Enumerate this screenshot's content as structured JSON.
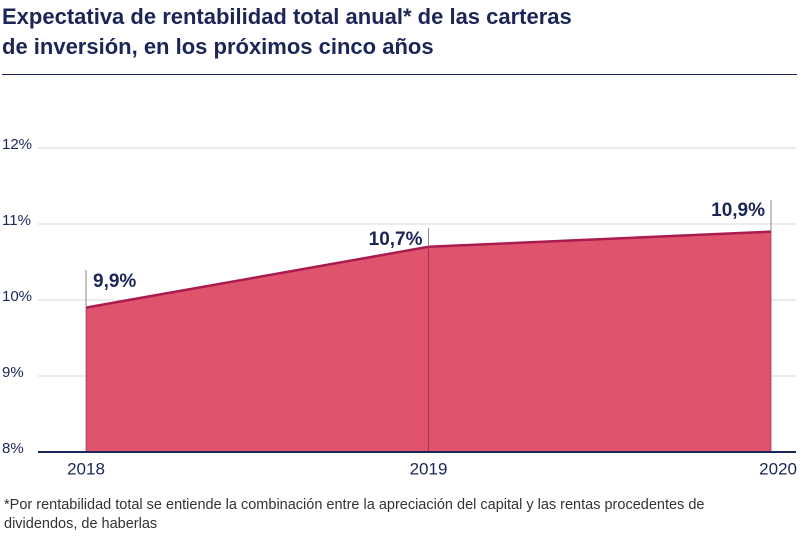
{
  "chart_data": {
    "type": "area",
    "title": "Expectativa de rentabilidad total anual* de las carteras de inversión, en los próximos cinco años",
    "categories": [
      "2018",
      "2019",
      "2020"
    ],
    "values": [
      9.9,
      10.7,
      10.9
    ],
    "value_labels": [
      "9,9%",
      "10,7%",
      "10,9%"
    ],
    "color": "#e0536c",
    "line_color": "#a81c4e",
    "ylim": [
      8,
      12
    ],
    "yticks": [
      {
        "value": 8,
        "label": "8%"
      },
      {
        "value": 9,
        "label": "9%"
      },
      {
        "value": 10,
        "label": "10%"
      },
      {
        "value": 11,
        "label": "11%"
      },
      {
        "value": 12,
        "label": "12%"
      }
    ],
    "grid": true,
    "footnote": "*Por rentabilidad total se entiende la combinación entre la apreciación del capital y las rentas procedentes de dividendos, de haberlas"
  }
}
